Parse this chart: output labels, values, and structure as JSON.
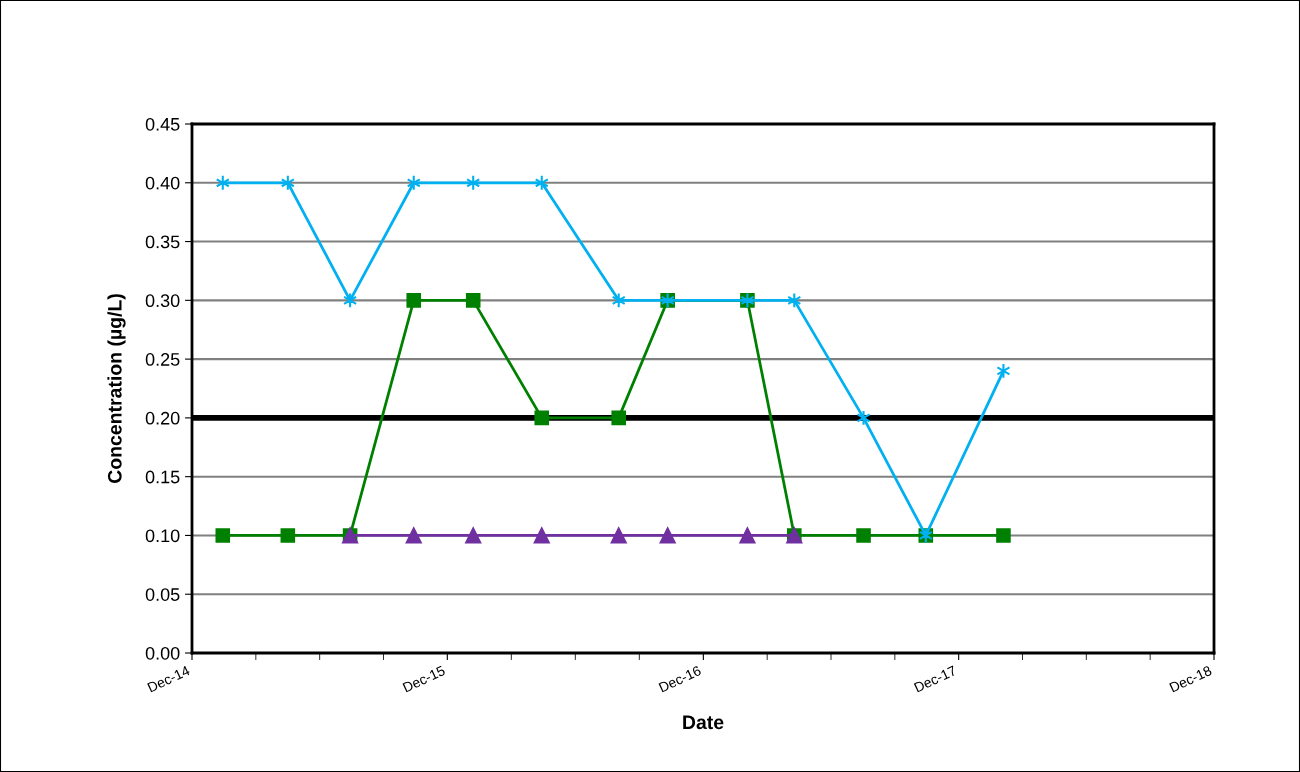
{
  "chart_data": {
    "type": "line",
    "xlabel": "Date",
    "ylabel": "Concentration (µg/L)",
    "x": [
      "2015-01-14",
      "2015-04-17",
      "2015-07-15",
      "2015-10-14",
      "2016-01-07",
      "2016-04-14",
      "2016-08-02",
      "2016-10-11",
      "2017-02-02",
      "2017-04-10",
      "2017-07-18",
      "2017-10-15",
      "2018-02-03"
    ],
    "series": [
      {
        "color": "#00b0f0",
        "marker": "cross",
        "values": [
          0.4,
          0.4,
          0.3,
          0.4,
          0.4,
          0.4,
          0.3,
          0.3,
          0.3,
          0.3,
          0.2,
          0.1,
          0.24
        ]
      },
      {
        "color": "#7030a0",
        "marker": "triangle",
        "values": [
          null,
          null,
          0.1,
          0.1,
          0.1,
          0.1,
          0.1,
          0.1,
          0.1,
          0.1,
          null,
          null,
          null
        ]
      },
      {
        "color": "#008000",
        "marker": "square",
        "values": [
          0.1,
          0.1,
          0.1,
          0.3,
          0.3,
          0.2,
          0.2,
          0.3,
          0.3,
          0.1,
          0.1,
          0.1,
          0.1
        ]
      }
    ],
    "xlim": [
      "2014-12-01",
      "2018-12-01"
    ],
    "xticks": [
      {
        "value": "2014-12-01",
        "label": "Dec-14"
      },
      {
        "value": "2015-12-01",
        "label": "Dec-15"
      },
      {
        "value": "2016-12-01",
        "label": "Dec-16"
      },
      {
        "value": "2017-12-01",
        "label": "Dec-17"
      },
      {
        "value": "2018-12-01",
        "label": "Dec-18"
      }
    ],
    "ylim": [
      0,
      0.45
    ],
    "yticks": [
      {
        "value": 0,
        "label": "0.00"
      },
      {
        "value": 0.05,
        "label": "0.05"
      },
      {
        "value": 0.1,
        "label": "0.10"
      },
      {
        "value": 0.15,
        "label": "0.15"
      },
      {
        "value": 0.2,
        "label": "0.20"
      },
      {
        "value": 0.25,
        "label": "0.25"
      },
      {
        "value": 0.3,
        "label": "0.30"
      },
      {
        "value": 0.35,
        "label": "0.35"
      },
      {
        "value": 0.4,
        "label": "0.40"
      },
      {
        "value": 0.45,
        "label": "0.45"
      }
    ],
    "grid": "y",
    "ref_lines": [
      {
        "axis": "y",
        "value": 0.2,
        "color": "#000000"
      }
    ]
  }
}
